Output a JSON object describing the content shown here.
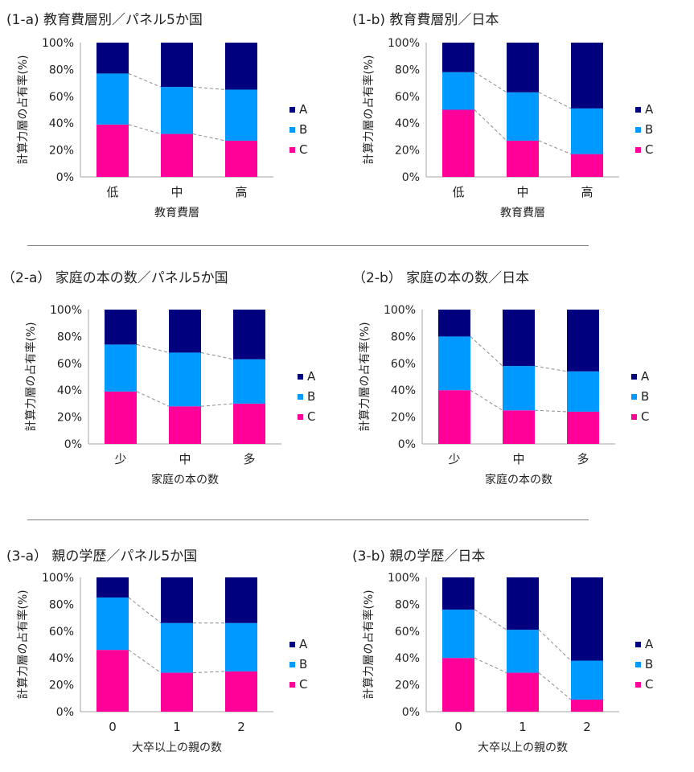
{
  "colors": {
    "A": "#00007f",
    "B": "#0099ff",
    "C": "#ff0099"
  },
  "chart_data": [
    {
      "type": "bar",
      "stacked": true,
      "percent": true,
      "title": "(1-a) 教育費層別／パネル5か国",
      "xlabel": "教育費層",
      "ylabel": "計算力層の占有率(%)",
      "categories": [
        "低",
        "中",
        "高"
      ],
      "ylim": [
        0,
        100
      ],
      "yticks": [
        "0%",
        "20%",
        "40%",
        "60%",
        "80%",
        "100%"
      ],
      "legend": "right",
      "series": [
        {
          "name": "C",
          "values": [
            39,
            32,
            27
          ]
        },
        {
          "name": "B",
          "values": [
            38,
            35,
            38
          ]
        },
        {
          "name": "A",
          "values": [
            23,
            33,
            35
          ]
        }
      ]
    },
    {
      "type": "bar",
      "stacked": true,
      "percent": true,
      "title": "(1-b) 教育費層別／日本",
      "xlabel": "教育費層",
      "ylabel": "計算力層の占有率(%)",
      "categories": [
        "低",
        "中",
        "高"
      ],
      "ylim": [
        0,
        100
      ],
      "yticks": [
        "0%",
        "20%",
        "40%",
        "60%",
        "80%",
        "100%"
      ],
      "legend": "right",
      "series": [
        {
          "name": "C",
          "values": [
            50,
            27,
            17
          ]
        },
        {
          "name": "B",
          "values": [
            28,
            36,
            34
          ]
        },
        {
          "name": "A",
          "values": [
            22,
            37,
            49
          ]
        }
      ]
    },
    {
      "type": "bar",
      "stacked": true,
      "percent": true,
      "title": "（2-a） 家庭の本の数／パネル5か国",
      "xlabel": "家庭の本の数",
      "ylabel": "計算力層の占有率(%)",
      "categories": [
        "少",
        "中",
        "多"
      ],
      "ylim": [
        0,
        100
      ],
      "yticks": [
        "0%",
        "20%",
        "40%",
        "60%",
        "80%",
        "100%"
      ],
      "legend": "right",
      "series": [
        {
          "name": "C",
          "values": [
            39,
            28,
            30
          ]
        },
        {
          "name": "B",
          "values": [
            35,
            40,
            33
          ]
        },
        {
          "name": "A",
          "values": [
            26,
            32,
            37
          ]
        }
      ]
    },
    {
      "type": "bar",
      "stacked": true,
      "percent": true,
      "title": "（2-b） 家庭の本の数／日本",
      "xlabel": "家庭の本の数",
      "ylabel": "計算力層の占有率(%)",
      "categories": [
        "少",
        "中",
        "多"
      ],
      "ylim": [
        0,
        100
      ],
      "yticks": [
        "0%",
        "20%",
        "40%",
        "60%",
        "80%",
        "100%"
      ],
      "legend": "right",
      "series": [
        {
          "name": "C",
          "values": [
            40,
            25,
            24
          ]
        },
        {
          "name": "B",
          "values": [
            40,
            33,
            30
          ]
        },
        {
          "name": "A",
          "values": [
            20,
            42,
            46
          ]
        }
      ]
    },
    {
      "type": "bar",
      "stacked": true,
      "percent": true,
      "title": "(3-a） 親の学歴／パネル5か国",
      "xlabel": "大卒以上の親の数",
      "ylabel": "計算力層の占有率(%)",
      "categories": [
        "0",
        "1",
        "2"
      ],
      "ylim": [
        0,
        100
      ],
      "yticks": [
        "0%",
        "20%",
        "40%",
        "60%",
        "80%",
        "100%"
      ],
      "legend": "right",
      "series": [
        {
          "name": "C",
          "values": [
            46,
            29,
            30
          ]
        },
        {
          "name": "B",
          "values": [
            39,
            37,
            36
          ]
        },
        {
          "name": "A",
          "values": [
            15,
            34,
            34
          ]
        }
      ]
    },
    {
      "type": "bar",
      "stacked": true,
      "percent": true,
      "title": "(3-b) 親の学歴／日本",
      "xlabel": "大卒以上の親の数",
      "ylabel": "計算力層の占有率(%)",
      "categories": [
        "0",
        "1",
        "2"
      ],
      "ylim": [
        0,
        100
      ],
      "yticks": [
        "0%",
        "20%",
        "40%",
        "60%",
        "80%",
        "100%"
      ],
      "legend": "right",
      "series": [
        {
          "name": "C",
          "values": [
            40,
            29,
            9
          ]
        },
        {
          "name": "B",
          "values": [
            36,
            32,
            29
          ]
        },
        {
          "name": "A",
          "values": [
            24,
            39,
            62
          ]
        }
      ]
    }
  ]
}
